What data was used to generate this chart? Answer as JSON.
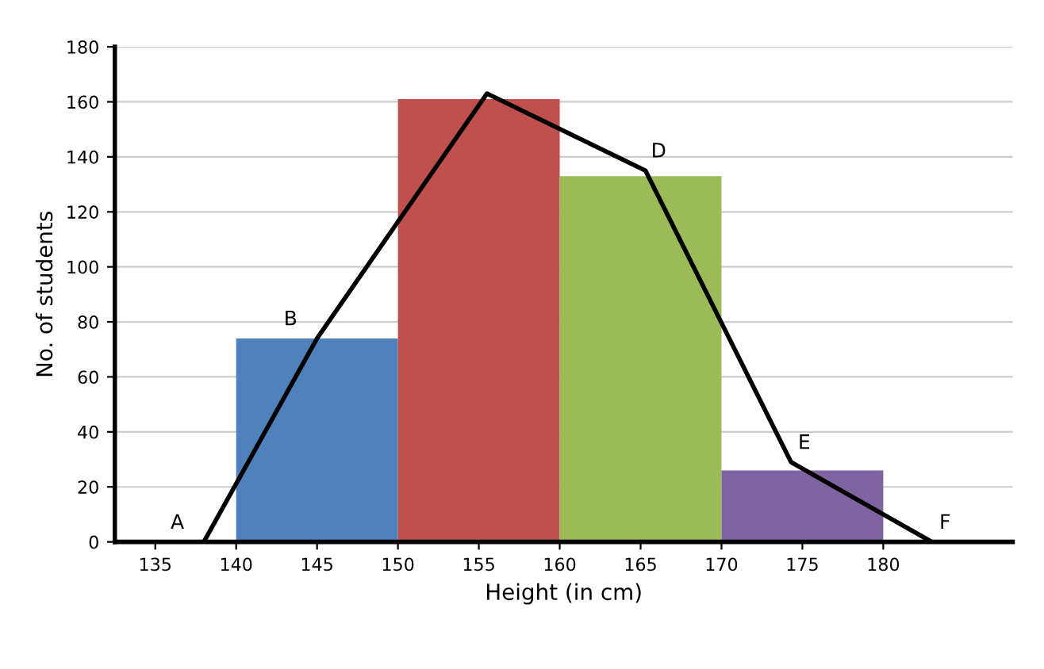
{
  "chart_data": {
    "type": "histogram",
    "xlabel": "Height (in cm)",
    "ylabel": "No. of students",
    "bins": [
      140,
      150,
      160,
      170,
      180
    ],
    "values": [
      74,
      161,
      133,
      26
    ],
    "colors": [
      "#4f81bd",
      "#c0504d",
      "#9bbb59",
      "#8064a2"
    ],
    "series": [
      {
        "type": "line",
        "x": [
          138,
          145,
          155.5,
          165.3,
          174.3,
          183
        ],
        "values": [
          0,
          74,
          163,
          135,
          29,
          0
        ],
        "color": "#000000"
      }
    ],
    "annotations": [
      {
        "text": "A",
        "x": 138,
        "y": 0
      },
      {
        "text": "B",
        "x": 145,
        "y": 74
      },
      {
        "text": "D",
        "x": 165.3,
        "y": 135
      },
      {
        "text": "E",
        "x": 174.3,
        "y": 29
      },
      {
        "text": "F",
        "x": 183,
        "y": 0
      }
    ],
    "xlim": [
      132.5,
      188
    ],
    "ylim": [
      0,
      180
    ],
    "xticks": [
      135,
      140,
      145,
      150,
      155,
      160,
      165,
      170,
      175,
      180
    ],
    "yticks": [
      0,
      20,
      40,
      60,
      80,
      100,
      120,
      140,
      160,
      180
    ],
    "grid": "y"
  }
}
